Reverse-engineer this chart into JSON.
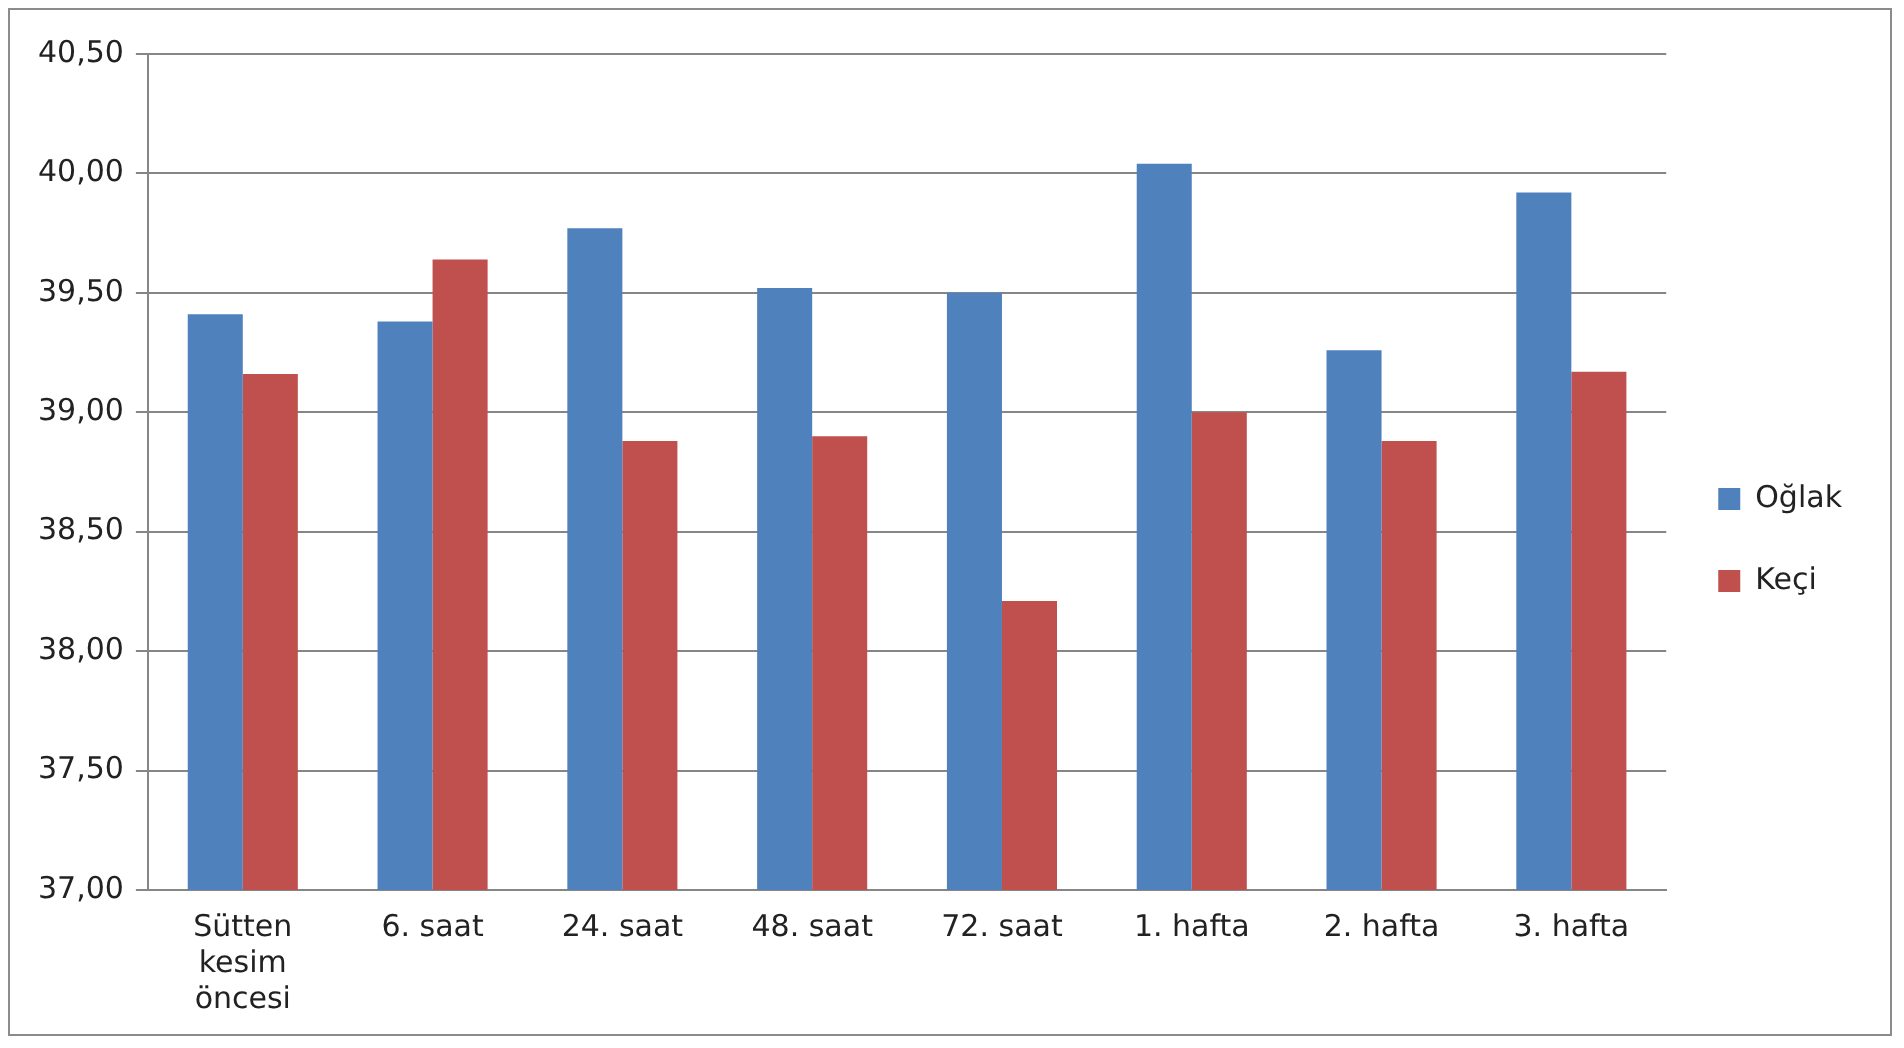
{
  "chart_data": {
    "type": "bar",
    "categories": [
      "Sütten kesim öncesi",
      "6. saat",
      "24. saat",
      "48. saat",
      "72. saat",
      "1. hafta",
      "2. hafta",
      "3. hafta"
    ],
    "series": [
      {
        "name": "Oğlak",
        "color": "#4f81bd",
        "values": [
          39.41,
          39.38,
          39.77,
          39.52,
          39.5,
          40.04,
          39.26,
          39.92
        ]
      },
      {
        "name": "Keçi",
        "color": "#c0504d",
        "values": [
          39.16,
          39.64,
          38.88,
          38.9,
          38.21,
          39.0,
          38.88,
          39.17
        ]
      }
    ],
    "ylim": [
      37,
      40.5
    ],
    "yticks": [
      {
        "value": 37,
        "label": "37,00"
      },
      {
        "value": 37.5,
        "label": "37,50"
      },
      {
        "value": 38,
        "label": "38,00"
      },
      {
        "value": 38.5,
        "label": "38,50"
      },
      {
        "value": 39,
        "label": "39,00"
      },
      {
        "value": 39.5,
        "label": "39,50"
      },
      {
        "value": 40,
        "label": "40,00"
      },
      {
        "value": 40.5,
        "label": "40,50"
      }
    ],
    "grid": "y",
    "legend": "right"
  }
}
